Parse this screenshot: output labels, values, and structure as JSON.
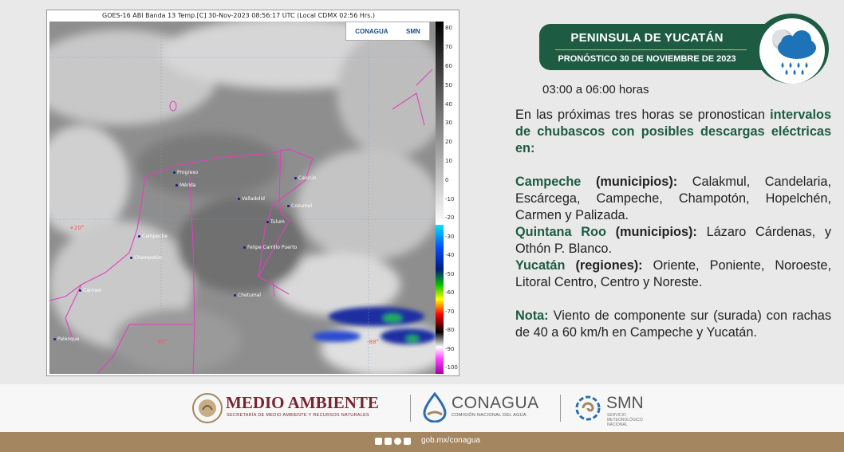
{
  "satellite": {
    "caption": "GOES-16 ABI Banda 13 Temp.[C] 30-Nov-2023 08:56:17 UTC (Local CDMX  02:56 Hrs.)",
    "logo_conagua": "CONAGUA",
    "logo_smn": "SMN",
    "colorbar_ticks": [
      "80",
      "70",
      "60",
      "50",
      "40",
      "30",
      "20",
      "10",
      "0",
      "-10",
      "-20",
      "-30",
      "-40",
      "-50",
      "-60",
      "-70",
      "-80",
      "-90",
      "-100"
    ],
    "cities": [
      "Progreso",
      "Mérida",
      "Valladolid",
      "Cancún",
      "Cozumel",
      "Tulum",
      "Campeche",
      "Champotón",
      "Felipe Carrillo Puerto",
      "Chetumal",
      "Carmen",
      "Palenque"
    ],
    "lat_label": "+20°",
    "lon_label_1": "-90°",
    "lon_label_2": "-88°"
  },
  "header": {
    "region": "PENINSULA DE YUCATÁN",
    "forecast_date": "PRONÓSTICO 30 DE NOVIEMBRE DE 2023",
    "weather_icon": "cloud-rain-icon"
  },
  "forecast": {
    "time_range": "03:00 a 06:00 horas",
    "intro_plain": "En las próximas tres horas se pronostican",
    "intro_bold": "intervalos de chubascos con posibles descargas eléctricas en:",
    "campeche_state": "Campeche",
    "campeche_kind": "(municipios):",
    "campeche_list": "Calakmul, Candelaria, Escárcega, Campeche, Champotón, Hopelchén, Carmen y Palizada.",
    "qroo_state": "Quintana Roo",
    "qroo_kind": "(municipios):",
    "qroo_list": "Lázaro Cárdenas,  y Othón P. Blanco.",
    "yucatan_state": "Yucatán",
    "yucatan_kind": "(regiones):",
    "yucatan_list": "Oriente, Poniente, Noroeste, Litoral Centro, Centro y Noreste.",
    "note_label": "Nota:",
    "note_text": "Viento de componente sur (surada) con rachas de 40 a 60 km/h en Campeche y Yucatán."
  },
  "logos": {
    "medio_ambiente": "MEDIO AMBIENTE",
    "medio_ambiente_sub": "SECRETARÍA DE MEDIO AMBIENTE Y RECURSOS NATURALES",
    "conagua": "CONAGUA",
    "conagua_sub": "COMISIÓN NACIONAL DEL AGUA",
    "smn": "SMN",
    "smn_sub": "SERVICIO METEOROLÓGICO NACIONAL"
  },
  "footer": {
    "url": "gob.mx/conagua"
  }
}
